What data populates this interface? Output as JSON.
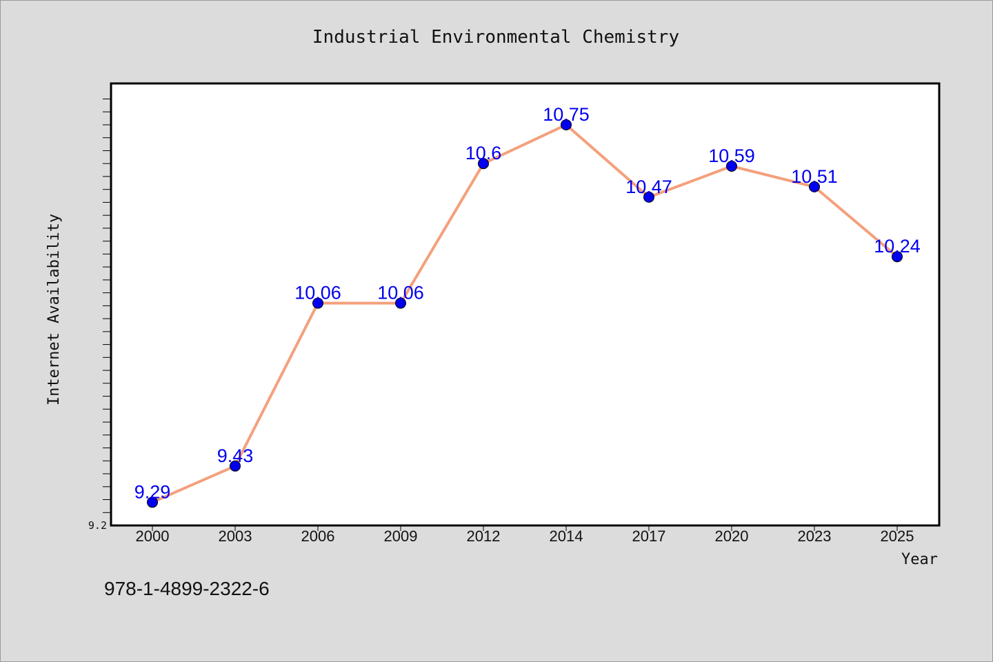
{
  "chart_data": {
    "type": "line",
    "title": "Industrial Environmental Chemistry",
    "xlabel": "Year",
    "ylabel": "Internet Availability",
    "categories": [
      "2000",
      "2003",
      "2006",
      "2009",
      "2012",
      "2014",
      "2017",
      "2020",
      "2023",
      "2025"
    ],
    "series": [
      {
        "values": [
          9.29,
          9.43,
          10.06,
          10.06,
          10.6,
          10.75,
          10.47,
          10.59,
          10.51,
          10.24
        ],
        "line_color": "#f4a07c",
        "marker_color": "#0000ee"
      }
    ],
    "data_labels": [
      "9.29",
      "9.43",
      "10.06",
      "10.06",
      "10.6",
      "10.75",
      "10.47",
      "10.59",
      "10.51",
      "10.24"
    ],
    "y_min_label": "9.2",
    "ylim": [
      9.2,
      10.91
    ],
    "grid": false,
    "label_color": "#0000ee"
  },
  "footer": {
    "isbn": "978-1-4899-2322-6"
  }
}
